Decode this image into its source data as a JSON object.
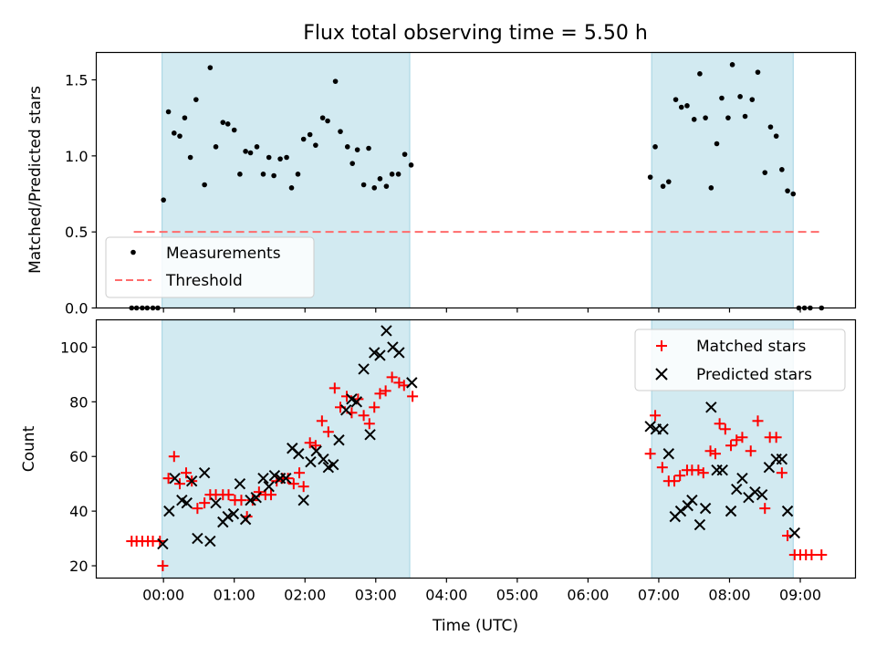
{
  "chart_data": {
    "title": "Flux total observing time = 5.50 h",
    "shared_x": {
      "label": "Time (UTC)",
      "range_hours": [
        -0.95,
        9.78
      ],
      "ticks": [
        {
          "value": 0,
          "label": "00:00"
        },
        {
          "value": 1,
          "label": "01:00"
        },
        {
          "value": 2,
          "label": "02:00"
        },
        {
          "value": 3,
          "label": "03:00"
        },
        {
          "value": 4,
          "label": "04:00"
        },
        {
          "value": 5,
          "label": "05:00"
        },
        {
          "value": 6,
          "label": "06:00"
        },
        {
          "value": 7,
          "label": "07:00"
        },
        {
          "value": 8,
          "label": "08:00"
        },
        {
          "value": 9,
          "label": "09:00"
        }
      ],
      "shaded_intervals_hours": [
        [
          -0.02,
          3.48
        ],
        [
          6.9,
          8.9
        ]
      ],
      "shade_color": "#add8e6"
    },
    "panels": [
      {
        "type": "scatter",
        "ylabel": "Matched/Predicted stars",
        "ylim": [
          0,
          1.68
        ],
        "yticks": [
          {
            "value": 0,
            "label": "0.0"
          },
          {
            "value": 0.5,
            "label": "0.5"
          },
          {
            "value": 1,
            "label": "1.0"
          },
          {
            "value": 1.5,
            "label": "1.5"
          }
        ],
        "legend_position": "lower-left",
        "series": [
          {
            "name": "Measurements",
            "label": "Measurements",
            "marker": "dot",
            "color": "#000000",
            "points": [
              [
                -0.45,
                0
              ],
              [
                -0.38,
                0
              ],
              [
                -0.3,
                0
              ],
              [
                -0.23,
                0
              ],
              [
                -0.15,
                0
              ],
              [
                -0.08,
                0
              ],
              [
                0.0,
                0.71
              ],
              [
                0.07,
                1.29
              ],
              [
                0.15,
                1.15
              ],
              [
                0.23,
                1.13
              ],
              [
                0.3,
                1.25
              ],
              [
                0.38,
                0.99
              ],
              [
                0.46,
                1.37
              ],
              [
                0.58,
                0.81
              ],
              [
                0.66,
                1.58
              ],
              [
                0.74,
                1.06
              ],
              [
                0.84,
                1.22
              ],
              [
                0.91,
                1.21
              ],
              [
                1.0,
                1.17
              ],
              [
                1.08,
                0.88
              ],
              [
                1.16,
                1.03
              ],
              [
                1.23,
                1.02
              ],
              [
                1.32,
                1.06
              ],
              [
                1.41,
                0.88
              ],
              [
                1.49,
                0.99
              ],
              [
                1.56,
                0.87
              ],
              [
                1.65,
                0.98
              ],
              [
                1.74,
                0.99
              ],
              [
                1.81,
                0.79
              ],
              [
                1.9,
                0.88
              ],
              [
                1.98,
                1.11
              ],
              [
                2.07,
                1.14
              ],
              [
                2.15,
                1.07
              ],
              [
                2.25,
                1.25
              ],
              [
                2.32,
                1.23
              ],
              [
                2.43,
                1.49
              ],
              [
                2.5,
                1.16
              ],
              [
                2.6,
                1.06
              ],
              [
                2.67,
                0.95
              ],
              [
                2.74,
                1.04
              ],
              [
                2.83,
                0.81
              ],
              [
                2.9,
                1.05
              ],
              [
                2.98,
                0.79
              ],
              [
                3.06,
                0.85
              ],
              [
                3.15,
                0.8
              ],
              [
                3.23,
                0.88
              ],
              [
                3.32,
                0.88
              ],
              [
                3.41,
                1.01
              ],
              [
                3.5,
                0.94
              ],
              [
                6.88,
                0.86
              ],
              [
                6.95,
                1.06
              ],
              [
                7.06,
                0.8
              ],
              [
                7.14,
                0.83
              ],
              [
                7.24,
                1.37
              ],
              [
                7.32,
                1.32
              ],
              [
                7.4,
                1.33
              ],
              [
                7.5,
                1.24
              ],
              [
                7.58,
                1.54
              ],
              [
                7.66,
                1.25
              ],
              [
                7.74,
                0.79
              ],
              [
                7.82,
                1.08
              ],
              [
                7.89,
                1.38
              ],
              [
                7.98,
                1.25
              ],
              [
                8.04,
                1.6
              ],
              [
                8.15,
                1.39
              ],
              [
                8.22,
                1.26
              ],
              [
                8.32,
                1.37
              ],
              [
                8.4,
                1.55
              ],
              [
                8.5,
                0.89
              ],
              [
                8.58,
                1.19
              ],
              [
                8.66,
                1.13
              ],
              [
                8.74,
                0.91
              ],
              [
                8.82,
                0.77
              ],
              [
                8.9,
                0.75
              ],
              [
                8.98,
                0
              ],
              [
                9.06,
                0
              ],
              [
                9.14,
                0
              ],
              [
                9.3,
                0
              ]
            ]
          },
          {
            "name": "Threshold",
            "label": "Threshold",
            "type": "line",
            "style": "dashed",
            "color": "#ff6b6b",
            "x": [
              -0.42,
              9.3
            ],
            "y": [
              0.5,
              0.5
            ]
          }
        ]
      },
      {
        "type": "scatter",
        "ylabel": "Count",
        "ylim": [
          15.5,
          110
        ],
        "yticks": [
          {
            "value": 20,
            "label": "20"
          },
          {
            "value": 40,
            "label": "40"
          },
          {
            "value": 60,
            "label": "60"
          },
          {
            "value": 80,
            "label": "80"
          },
          {
            "value": 100,
            "label": "100"
          }
        ],
        "legend_position": "top-right",
        "series": [
          {
            "name": "Matched stars",
            "label": "Matched stars",
            "marker": "plus",
            "color": "#ff0000",
            "points": [
              [
                -0.45,
                29
              ],
              [
                -0.38,
                29
              ],
              [
                -0.3,
                29
              ],
              [
                -0.22,
                29
              ],
              [
                -0.15,
                29
              ],
              [
                -0.05,
                29
              ],
              [
                -0.01,
                20
              ],
              [
                0.07,
                52
              ],
              [
                0.15,
                60
              ],
              [
                0.23,
                50
              ],
              [
                0.32,
                54
              ],
              [
                0.4,
                51
              ],
              [
                0.48,
                41
              ],
              [
                0.58,
                43
              ],
              [
                0.66,
                46
              ],
              [
                0.74,
                46
              ],
              [
                0.84,
                46
              ],
              [
                0.92,
                46
              ],
              [
                1.01,
                44
              ],
              [
                1.1,
                44
              ],
              [
                1.18,
                38
              ],
              [
                1.26,
                44
              ],
              [
                1.35,
                47
              ],
              [
                1.44,
                46
              ],
              [
                1.52,
                46
              ],
              [
                1.6,
                51
              ],
              [
                1.68,
                52
              ],
              [
                1.76,
                52
              ],
              [
                1.84,
                50
              ],
              [
                1.92,
                54
              ],
              [
                1.98,
                49
              ],
              [
                2.07,
                65
              ],
              [
                2.15,
                64
              ],
              [
                2.24,
                73
              ],
              [
                2.33,
                69
              ],
              [
                2.42,
                85
              ],
              [
                2.5,
                78
              ],
              [
                2.59,
                82
              ],
              [
                2.66,
                76
              ],
              [
                2.75,
                81
              ],
              [
                2.83,
                75
              ],
              [
                2.91,
                72
              ],
              [
                2.98,
                78
              ],
              [
                3.06,
                83
              ],
              [
                3.14,
                84
              ],
              [
                3.23,
                89
              ],
              [
                3.33,
                87
              ],
              [
                3.4,
                86
              ],
              [
                3.52,
                82
              ],
              [
                6.88,
                61
              ],
              [
                6.95,
                75
              ],
              [
                7.05,
                56
              ],
              [
                7.14,
                51
              ],
              [
                7.22,
                51
              ],
              [
                7.3,
                53
              ],
              [
                7.4,
                55
              ],
              [
                7.47,
                55
              ],
              [
                7.56,
                55
              ],
              [
                7.63,
                54
              ],
              [
                7.73,
                62
              ],
              [
                7.8,
                61
              ],
              [
                7.86,
                72
              ],
              [
                7.94,
                70
              ],
              [
                8.02,
                64
              ],
              [
                8.1,
                66
              ],
              [
                8.18,
                67
              ],
              [
                8.3,
                62
              ],
              [
                8.4,
                73
              ],
              [
                8.5,
                41
              ],
              [
                8.57,
                67
              ],
              [
                8.66,
                67
              ],
              [
                8.74,
                54
              ],
              [
                8.82,
                31
              ],
              [
                8.92,
                24
              ],
              [
                9.0,
                24
              ],
              [
                9.08,
                24
              ],
              [
                9.16,
                24
              ],
              [
                9.3,
                24
              ]
            ]
          },
          {
            "name": "Predicted stars",
            "label": "Predicted stars",
            "marker": "x",
            "color": "#000000",
            "points": [
              [
                -0.01,
                28
              ],
              [
                0.08,
                40
              ],
              [
                0.16,
                52
              ],
              [
                0.26,
                44
              ],
              [
                0.33,
                43
              ],
              [
                0.4,
                51
              ],
              [
                0.48,
                30
              ],
              [
                0.58,
                54
              ],
              [
                0.66,
                29
              ],
              [
                0.74,
                43
              ],
              [
                0.84,
                36
              ],
              [
                0.91,
                38
              ],
              [
                0.99,
                39
              ],
              [
                1.08,
                50
              ],
              [
                1.16,
                37
              ],
              [
                1.23,
                44
              ],
              [
                1.31,
                45
              ],
              [
                1.41,
                52
              ],
              [
                1.49,
                49
              ],
              [
                1.57,
                53
              ],
              [
                1.65,
                52
              ],
              [
                1.73,
                52
              ],
              [
                1.82,
                63
              ],
              [
                1.91,
                61
              ],
              [
                1.98,
                44
              ],
              [
                2.08,
                58
              ],
              [
                2.16,
                62
              ],
              [
                2.26,
                59
              ],
              [
                2.33,
                56
              ],
              [
                2.4,
                57
              ],
              [
                2.48,
                66
              ],
              [
                2.58,
                77
              ],
              [
                2.66,
                81
              ],
              [
                2.73,
                80
              ],
              [
                2.83,
                92
              ],
              [
                2.92,
                68
              ],
              [
                2.98,
                98
              ],
              [
                3.06,
                97
              ],
              [
                3.15,
                106
              ],
              [
                3.24,
                100
              ],
              [
                3.33,
                98
              ],
              [
                3.51,
                87
              ],
              [
                6.88,
                71
              ],
              [
                6.96,
                70
              ],
              [
                7.06,
                70
              ],
              [
                7.14,
                61
              ],
              [
                7.23,
                38
              ],
              [
                7.31,
                40
              ],
              [
                7.41,
                42
              ],
              [
                7.47,
                44
              ],
              [
                7.58,
                35
              ],
              [
                7.66,
                41
              ],
              [
                7.74,
                78
              ],
              [
                7.82,
                55
              ],
              [
                7.9,
                55
              ],
              [
                8.02,
                40
              ],
              [
                8.1,
                48
              ],
              [
                8.18,
                52
              ],
              [
                8.27,
                45
              ],
              [
                8.36,
                47
              ],
              [
                8.46,
                46
              ],
              [
                8.56,
                56
              ],
              [
                8.66,
                59
              ],
              [
                8.74,
                59
              ],
              [
                8.82,
                40
              ],
              [
                8.92,
                32
              ]
            ]
          }
        ]
      }
    ]
  }
}
